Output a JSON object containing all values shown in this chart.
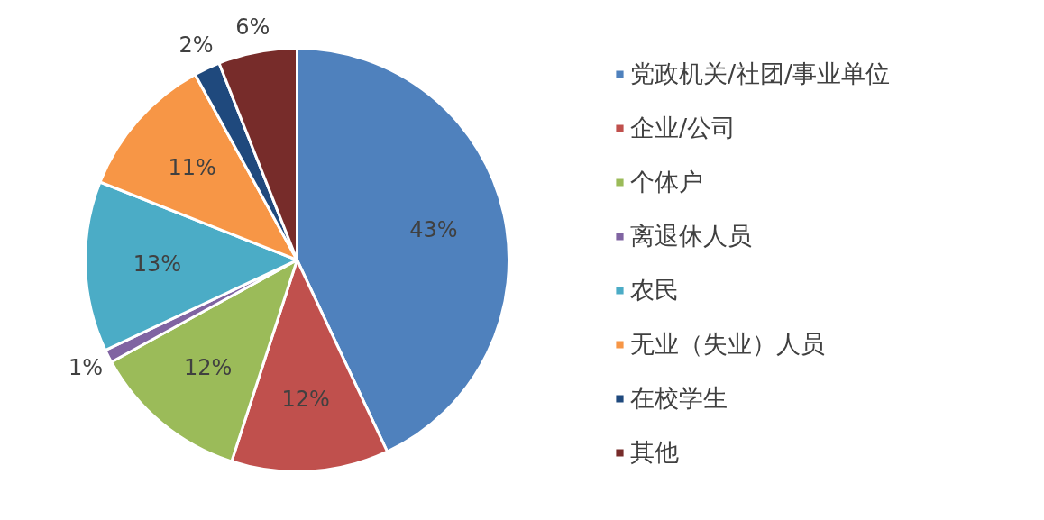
{
  "chart_data": {
    "type": "pie",
    "categories": [
      "党政机关/社团/事业单位",
      "企业/公司",
      "个体户",
      "离退休人员",
      "农民",
      "无业（失业）人员",
      "在校学生",
      "其他"
    ],
    "values": [
      43,
      12,
      12,
      1,
      13,
      11,
      2,
      6
    ],
    "colors": [
      "#4f81bd",
      "#c0504d",
      "#9bbb59",
      "#8064a2",
      "#4bacc6",
      "#f79646",
      "#1f497d",
      "#772c2a"
    ],
    "value_labels": [
      "43%",
      "12%",
      "12%",
      "1%",
      "13%",
      "11%",
      "2%",
      "6%"
    ],
    "legend": "right"
  }
}
